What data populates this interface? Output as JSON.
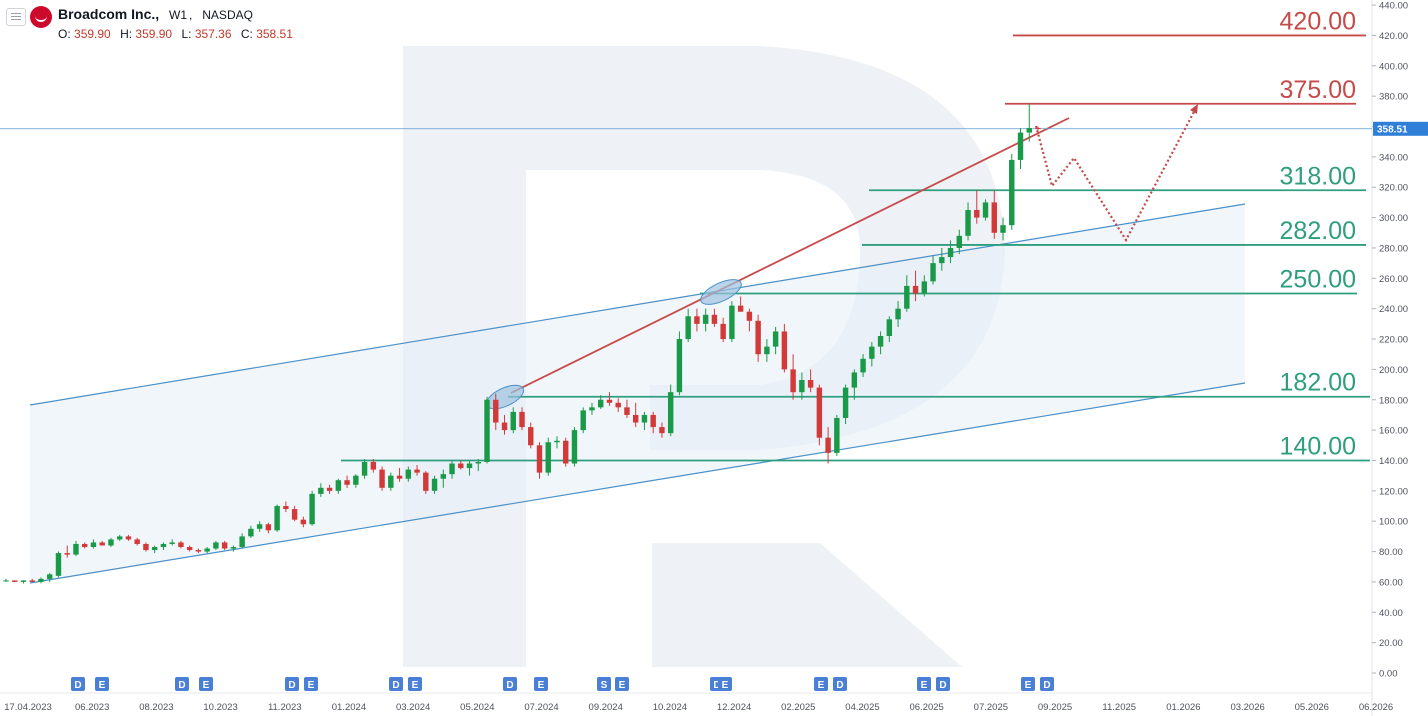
{
  "header": {
    "symbol_name": "Broadcom Inc.,",
    "interval": "W1",
    "exchange": "NASDAQ",
    "ohlc": {
      "o_label": "O:",
      "o": "359.90",
      "h_label": "H:",
      "h": "359.90",
      "l_label": "L:",
      "l": "357.36",
      "c_label": "C:",
      "c": "358.51"
    }
  },
  "colors": {
    "bull": "#1a9a48",
    "bear": "#d23a3a",
    "level_green": "#2e9e7f",
    "level_red": "#c74a4a",
    "resistance": "#c74a4a",
    "channel": "#4a90c8",
    "badge": "#4a7fd6",
    "price_tag": "#2f7fd8",
    "projection": "#c24a4a"
  },
  "chart_data": {
    "type": "candlestick",
    "y_range": [
      -10,
      442
    ],
    "y_ticks": [
      "0.00",
      "20.00",
      "40.00",
      "60.00",
      "80.00",
      "100.00",
      "120.00",
      "140.00",
      "160.00",
      "180.00",
      "200.00",
      "220.00",
      "240.00",
      "260.00",
      "280.00",
      "300.00",
      "320.00",
      "340.00",
      "360.00",
      "380.00",
      "400.00",
      "420.00",
      "440.00"
    ],
    "x_ticks": [
      "17.04.2023",
      "06.2023",
      "08.2023",
      "10.2023",
      "11.2023",
      "01.2024",
      "03.2024",
      "05.2024",
      "07.2024",
      "09.2024",
      "10.2024",
      "12.2024",
      "02.2025",
      "04.2025",
      "06.2025",
      "07.2025",
      "09.2025",
      "11.2025",
      "01.2026",
      "03.2026",
      "05.2026",
      "06.2026"
    ],
    "last_price": "358.51",
    "last_value": 358.51,
    "levels": [
      {
        "label": "420.00",
        "value": 420,
        "color": "red"
      },
      {
        "label": "375.00",
        "value": 375,
        "color": "red"
      },
      {
        "label": "318.00",
        "value": 318,
        "color": "green"
      },
      {
        "label": "282.00",
        "value": 282,
        "color": "green"
      },
      {
        "label": "250.00",
        "value": 250,
        "color": "green"
      },
      {
        "label": "182.00",
        "value": 182,
        "color": "green"
      },
      {
        "label": "140.00",
        "value": 140,
        "color": "green"
      }
    ],
    "event_badges": [
      "D",
      "E",
      "D",
      "E",
      "D",
      "E",
      "D",
      "E",
      "D",
      "E",
      "S",
      "E",
      "D",
      "E",
      "E",
      "D",
      "E",
      "D",
      "E",
      "D"
    ],
    "candles": [
      [
        61,
        62,
        60,
        61
      ],
      [
        61,
        61,
        60,
        60
      ],
      [
        60,
        61,
        59,
        61
      ],
      [
        61,
        62,
        60,
        60
      ],
      [
        60,
        63,
        59,
        62
      ],
      [
        62,
        66,
        60,
        65
      ],
      [
        64,
        80,
        63,
        79
      ],
      [
        79,
        84,
        76,
        78
      ],
      [
        78,
        87,
        77,
        85
      ],
      [
        85,
        86,
        82,
        83
      ],
      [
        83,
        88,
        82,
        86
      ],
      [
        86,
        87,
        84,
        84
      ],
      [
        84,
        89,
        83,
        88
      ],
      [
        88,
        91,
        87,
        90
      ],
      [
        90,
        91,
        87,
        88
      ],
      [
        88,
        89,
        84,
        85
      ],
      [
        85,
        86,
        80,
        81
      ],
      [
        81,
        84,
        79,
        83
      ],
      [
        83,
        86,
        81,
        85
      ],
      [
        85,
        88,
        84,
        86
      ],
      [
        86,
        87,
        82,
        83
      ],
      [
        83,
        84,
        80,
        81
      ],
      [
        81,
        82,
        79,
        80
      ],
      [
        80,
        83,
        79,
        82
      ],
      [
        82,
        87,
        81,
        86
      ],
      [
        86,
        87,
        81,
        82
      ],
      [
        82,
        84,
        80,
        83
      ],
      [
        83,
        92,
        82,
        90
      ],
      [
        90,
        97,
        89,
        95
      ],
      [
        95,
        100,
        93,
        98
      ],
      [
        98,
        99,
        92,
        94
      ],
      [
        94,
        111,
        93,
        110
      ],
      [
        110,
        113,
        106,
        108
      ],
      [
        108,
        110,
        100,
        101
      ],
      [
        101,
        103,
        96,
        98
      ],
      [
        98,
        120,
        97,
        118
      ],
      [
        118,
        125,
        116,
        122
      ],
      [
        122,
        124,
        118,
        120
      ],
      [
        120,
        128,
        118,
        127
      ],
      [
        127,
        130,
        122,
        124
      ],
      [
        124,
        131,
        122,
        130
      ],
      [
        130,
        141,
        128,
        139
      ],
      [
        139,
        141,
        132,
        134
      ],
      [
        134,
        136,
        120,
        122
      ],
      [
        122,
        132,
        120,
        130
      ],
      [
        130,
        135,
        126,
        128
      ],
      [
        128,
        136,
        126,
        134
      ],
      [
        134,
        137,
        130,
        132
      ],
      [
        132,
        133,
        118,
        120
      ],
      [
        120,
        130,
        118,
        128
      ],
      [
        128,
        134,
        122,
        131
      ],
      [
        131,
        140,
        128,
        138
      ],
      [
        138,
        140,
        134,
        135
      ],
      [
        135,
        140,
        130,
        138
      ],
      [
        138,
        141,
        133,
        139
      ],
      [
        139,
        182,
        138,
        180
      ],
      [
        180,
        184,
        160,
        165
      ],
      [
        165,
        170,
        157,
        160
      ],
      [
        160,
        175,
        158,
        172
      ],
      [
        172,
        175,
        160,
        162
      ],
      [
        162,
        165,
        148,
        150
      ],
      [
        150,
        152,
        128,
        132
      ],
      [
        132,
        155,
        130,
        152
      ],
      [
        152,
        156,
        148,
        153
      ],
      [
        153,
        155,
        136,
        138
      ],
      [
        138,
        162,
        136,
        160
      ],
      [
        160,
        175,
        158,
        173
      ],
      [
        173,
        178,
        170,
        175
      ],
      [
        175,
        183,
        174,
        180
      ],
      [
        180,
        185,
        176,
        178
      ],
      [
        178,
        181,
        172,
        175
      ],
      [
        175,
        180,
        168,
        170
      ],
      [
        170,
        178,
        162,
        165
      ],
      [
        165,
        172,
        160,
        170
      ],
      [
        170,
        172,
        158,
        162
      ],
      [
        162,
        165,
        155,
        158
      ],
      [
        158,
        190,
        156,
        185
      ],
      [
        185,
        225,
        183,
        220
      ],
      [
        220,
        240,
        218,
        235
      ],
      [
        235,
        240,
        225,
        230
      ],
      [
        230,
        240,
        225,
        236
      ],
      [
        236,
        240,
        228,
        230
      ],
      [
        230,
        234,
        218,
        220
      ],
      [
        220,
        245,
        218,
        242
      ],
      [
        242,
        248,
        238,
        238
      ],
      [
        238,
        240,
        225,
        232
      ],
      [
        232,
        236,
        205,
        210
      ],
      [
        210,
        220,
        205,
        215
      ],
      [
        215,
        228,
        210,
        225
      ],
      [
        225,
        230,
        198,
        200
      ],
      [
        200,
        210,
        180,
        185
      ],
      [
        185,
        198,
        180,
        193
      ],
      [
        193,
        200,
        185,
        188
      ],
      [
        188,
        190,
        150,
        155
      ],
      [
        155,
        162,
        138,
        145
      ],
      [
        145,
        170,
        143,
        168
      ],
      [
        168,
        190,
        164,
        188
      ],
      [
        188,
        200,
        180,
        198
      ],
      [
        198,
        210,
        195,
        207
      ],
      [
        207,
        218,
        202,
        215
      ],
      [
        215,
        225,
        210,
        222
      ],
      [
        222,
        235,
        218,
        233
      ],
      [
        233,
        245,
        228,
        240
      ],
      [
        240,
        262,
        238,
        255
      ],
      [
        255,
        265,
        245,
        250
      ],
      [
        250,
        262,
        248,
        258
      ],
      [
        258,
        275,
        256,
        270
      ],
      [
        270,
        280,
        265,
        274
      ],
      [
        274,
        285,
        270,
        280
      ],
      [
        280,
        292,
        276,
        288
      ],
      [
        288,
        310,
        285,
        305
      ],
      [
        305,
        318,
        296,
        300
      ],
      [
        300,
        312,
        298,
        310
      ],
      [
        310,
        318,
        286,
        290
      ],
      [
        290,
        300,
        285,
        295
      ],
      [
        295,
        342,
        292,
        338
      ],
      [
        338,
        359,
        332,
        356
      ],
      [
        356,
        375,
        350,
        359
      ],
      [
        359,
        360,
        357,
        358.5
      ]
    ]
  }
}
